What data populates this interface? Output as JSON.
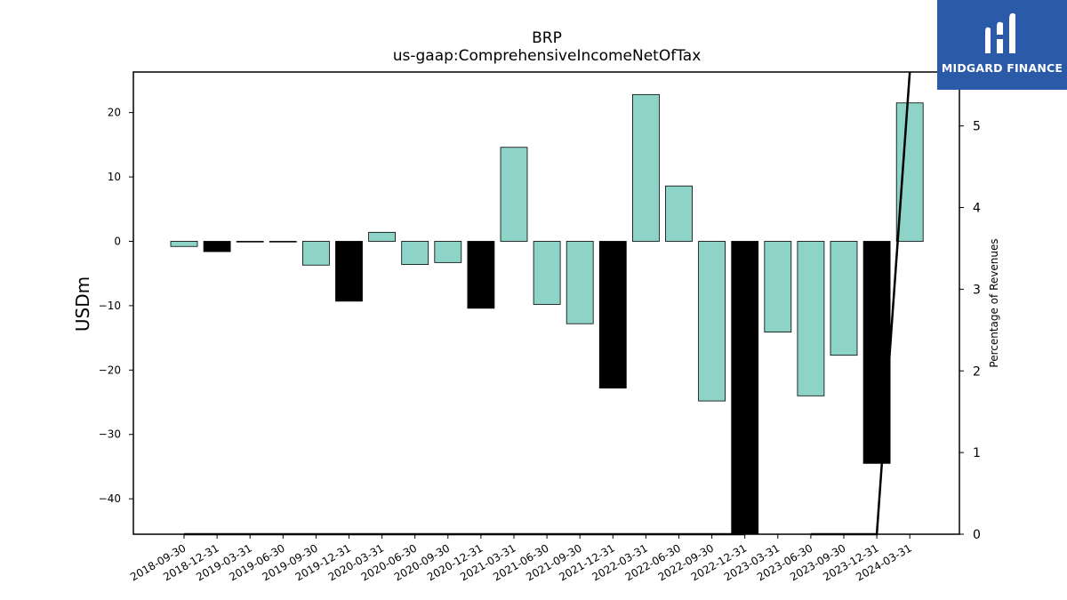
{
  "header": {
    "title": "BRP",
    "subtitle": "us-gaap:ComprehensiveIncomeNetOfTax"
  },
  "logo": {
    "text": "MIDGARD FINANCE",
    "bg_color": "#2b5aa8"
  },
  "chart_data": {
    "type": "bar",
    "categories": [
      "2018-09-30",
      "2018-12-31",
      "2019-03-31",
      "2019-06-30",
      "2019-09-30",
      "2019-12-31",
      "2020-03-31",
      "2020-06-30",
      "2020-09-30",
      "2020-12-31",
      "2021-03-31",
      "2021-06-30",
      "2021-09-30",
      "2021-12-31",
      "2022-03-31",
      "2022-06-30",
      "2022-09-30",
      "2022-12-31",
      "2023-03-31",
      "2023-06-30",
      "2023-09-30",
      "2023-12-31",
      "2024-03-31"
    ],
    "values": [
      -0.8,
      -1.6,
      -0.1,
      -0.1,
      -3.7,
      -9.3,
      1.4,
      -3.6,
      -3.3,
      -10.4,
      14.6,
      -9.8,
      -12.8,
      -22.8,
      22.8,
      8.6,
      -24.8,
      -45.5,
      -14.1,
      -24.0,
      -17.7,
      -34.5,
      21.5
    ],
    "bar_colors": [
      "#8dd3c7",
      "#000000",
      "#8dd3c7",
      "#8dd3c7",
      "#8dd3c7",
      "#000000",
      "#8dd3c7",
      "#8dd3c7",
      "#8dd3c7",
      "#000000",
      "#8dd3c7",
      "#8dd3c7",
      "#8dd3c7",
      "#000000",
      "#8dd3c7",
      "#8dd3c7",
      "#8dd3c7",
      "#000000",
      "#8dd3c7",
      "#8dd3c7",
      "#8dd3c7",
      "#000000",
      "#8dd3c7"
    ],
    "ylabel": "USDm",
    "ylim": [
      -45.5,
      26.3
    ],
    "yticks": [
      -40,
      -30,
      -20,
      -10,
      0,
      10,
      20
    ],
    "secondary_axis": {
      "ylabel": "Percentage of Revenues",
      "ylim": [
        0,
        5.66
      ],
      "yticks": [
        0,
        1,
        2,
        3,
        4,
        5
      ],
      "line_values": [
        0,
        0,
        0,
        0,
        0,
        0,
        0,
        0,
        0,
        0,
        0,
        0,
        0,
        0,
        0,
        0,
        0,
        0,
        null,
        0,
        0,
        0,
        5.67
      ]
    },
    "grid": false,
    "legend": false
  }
}
